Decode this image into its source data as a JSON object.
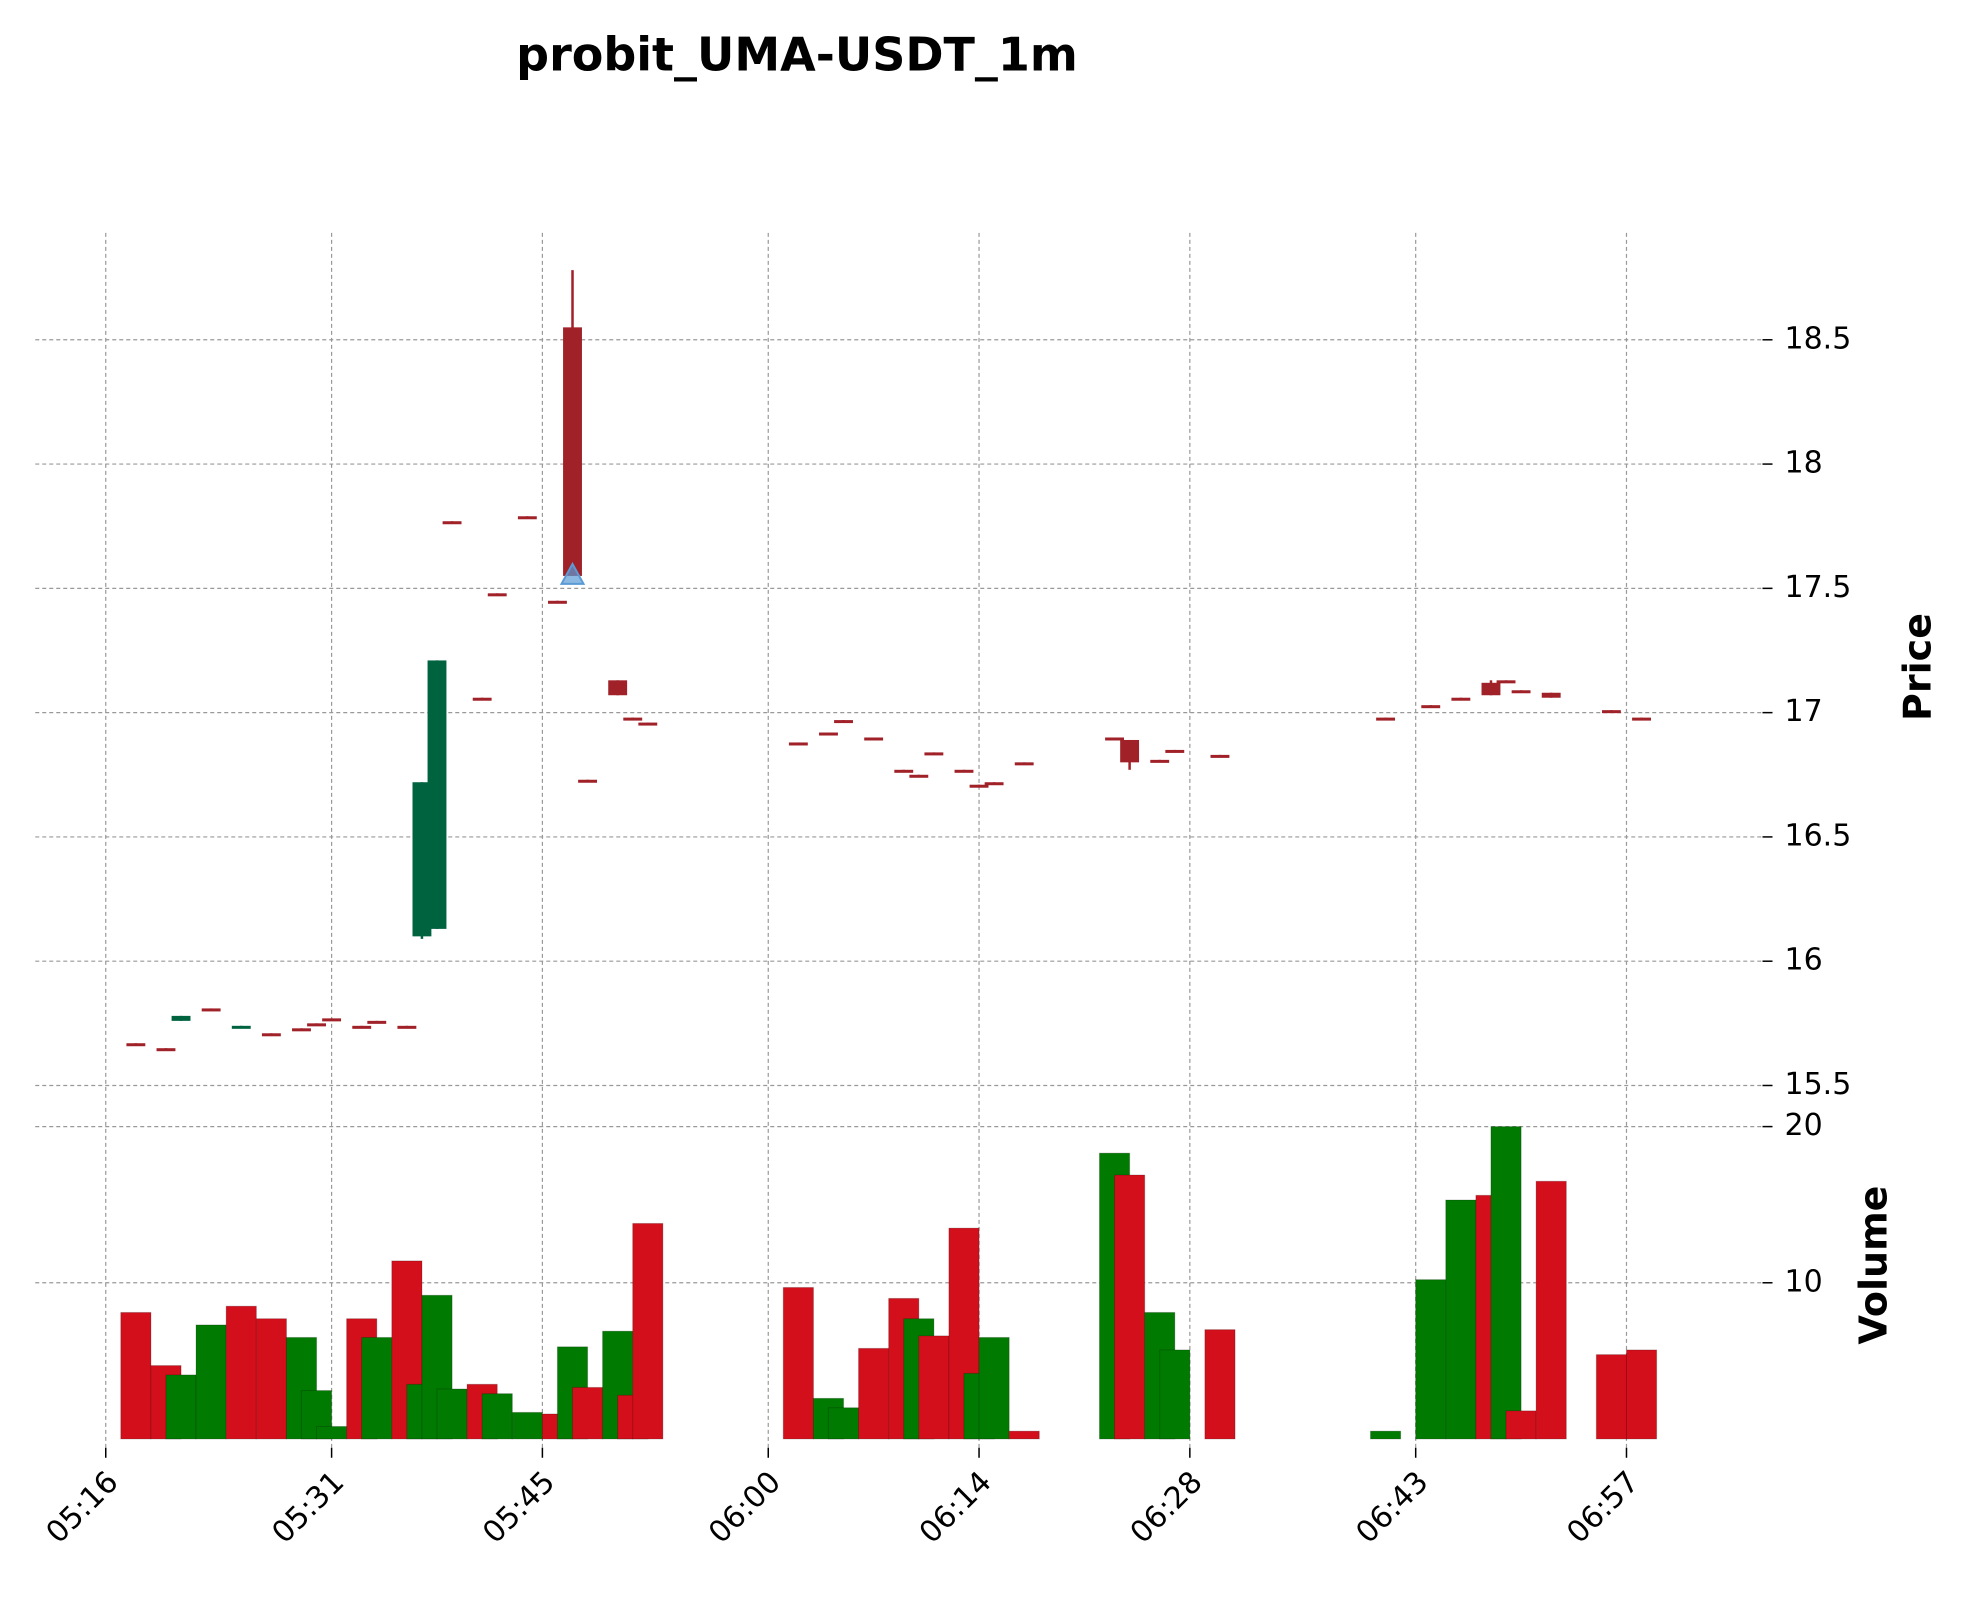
{
  "chart_data": {
    "type": "candlestick",
    "title": "probit_UMA-USDT_1m",
    "ylabel": "Price",
    "volume_label": "Volume",
    "x": [
      "05:18",
      "05:20",
      "05:21",
      "05:23",
      "05:25",
      "05:27",
      "05:29",
      "05:30",
      "05:31",
      "05:33",
      "05:34",
      "05:36",
      "05:37",
      "05:38",
      "05:39",
      "05:41",
      "05:42",
      "05:44",
      "05:46",
      "05:47",
      "05:48",
      "05:50",
      "05:51",
      "05:52",
      "06:02",
      "06:04",
      "06:05",
      "06:07",
      "06:09",
      "06:10",
      "06:11",
      "06:13",
      "06:14",
      "06:15",
      "06:17",
      "06:23",
      "06:24",
      "06:26",
      "06:27",
      "06:30",
      "06:41",
      "06:44",
      "06:46",
      "06:48",
      "06:49",
      "06:50",
      "06:52",
      "06:56",
      "06:58"
    ],
    "open": [
      15.67,
      15.65,
      15.76,
      15.81,
      15.73,
      15.71,
      15.73,
      15.75,
      15.77,
      15.74,
      15.76,
      15.74,
      16.1,
      16.13,
      17.77,
      17.06,
      17.48,
      17.79,
      17.45,
      18.55,
      16.73,
      17.13,
      16.98,
      16.96,
      16.88,
      16.92,
      16.97,
      16.9,
      16.77,
      16.75,
      16.84,
      16.77,
      16.71,
      16.72,
      16.8,
      16.9,
      16.89,
      16.81,
      16.85,
      16.83,
      16.98,
      17.03,
      17.06,
      17.12,
      17.13,
      17.09,
      17.08,
      17.01,
      16.98
    ],
    "high": [
      15.67,
      15.65,
      15.78,
      15.81,
      15.74,
      15.71,
      15.73,
      15.75,
      15.77,
      15.74,
      15.76,
      15.74,
      16.72,
      17.21,
      17.77,
      17.06,
      17.48,
      17.79,
      17.45,
      18.78,
      16.73,
      17.13,
      16.98,
      16.96,
      16.88,
      16.92,
      16.97,
      16.9,
      16.77,
      16.75,
      16.84,
      16.77,
      16.71,
      16.72,
      16.8,
      16.9,
      16.89,
      16.81,
      16.85,
      16.83,
      16.98,
      17.03,
      17.06,
      17.13,
      17.13,
      17.09,
      17.08,
      17.01,
      16.98
    ],
    "low": [
      15.66,
      15.64,
      15.76,
      15.8,
      15.73,
      15.7,
      15.72,
      15.74,
      15.76,
      15.73,
      15.75,
      15.73,
      16.09,
      16.13,
      17.76,
      17.05,
      17.47,
      17.78,
      17.44,
      17.55,
      16.72,
      17.07,
      16.97,
      16.95,
      16.87,
      16.91,
      16.96,
      16.89,
      16.76,
      16.74,
      16.83,
      16.76,
      16.7,
      16.71,
      16.79,
      16.89,
      16.77,
      16.8,
      16.84,
      16.82,
      16.97,
      17.02,
      17.05,
      17.07,
      17.12,
      17.08,
      17.06,
      17.0,
      16.97
    ],
    "close": [
      15.66,
      15.64,
      15.78,
      15.8,
      15.74,
      15.7,
      15.72,
      15.74,
      15.76,
      15.73,
      15.75,
      15.73,
      16.72,
      17.21,
      17.76,
      17.05,
      17.47,
      17.78,
      17.44,
      17.55,
      16.72,
      17.07,
      16.97,
      16.95,
      16.87,
      16.91,
      16.96,
      16.89,
      16.76,
      16.74,
      16.83,
      16.76,
      16.7,
      16.71,
      16.79,
      16.89,
      16.8,
      16.8,
      16.84,
      16.82,
      16.97,
      17.02,
      17.05,
      17.07,
      17.12,
      17.08,
      17.06,
      17.0,
      16.97
    ],
    "volume": [
      8.1,
      4.7,
      4.1,
      7.3,
      8.5,
      7.7,
      6.5,
      3.1,
      0.8,
      7.7,
      6.5,
      11.4,
      3.5,
      9.2,
      3.2,
      3.5,
      2.9,
      1.7,
      1.6,
      5.9,
      3.3,
      6.9,
      2.8,
      13.8,
      9.7,
      2.6,
      2.0,
      5.8,
      9.0,
      7.7,
      6.6,
      13.5,
      4.2,
      6.5,
      0.5,
      18.3,
      16.9,
      8.1,
      5.7,
      7.0,
      0.5,
      10.2,
      15.3,
      15.6,
      20.0,
      1.8,
      16.5,
      5.4,
      5.7
    ],
    "volume_colors": [
      "#d40f1c",
      "#d40f1c",
      "#007a00",
      "#007a00",
      "#d40f1c",
      "#d40f1c",
      "#007a00",
      "#007a00",
      "#007a00",
      "#d40f1c",
      "#007a00",
      "#d40f1c",
      "#007a00",
      "#007a00",
      "#007a00",
      "#d40f1c",
      "#007a00",
      "#007a00",
      "#d40f1c",
      "#007a00",
      "#d40f1c",
      "#007a00",
      "#d40f1c",
      "#d40f1c",
      "#d40f1c",
      "#007a00",
      "#007a00",
      "#d40f1c",
      "#d40f1c",
      "#007a00",
      "#d40f1c",
      "#d40f1c",
      "#007a00",
      "#007a00",
      "#d40f1c",
      "#007a00",
      "#d40f1c",
      "#007a00",
      "#007a00",
      "#d40f1c",
      "#007a00",
      "#007a00",
      "#007a00",
      "#d40f1c",
      "#007a00",
      "#d40f1c",
      "#d40f1c",
      "#d40f1c",
      "#d40f1c"
    ],
    "up_color": "#006340",
    "down_color": "#a02128",
    "markers": {
      "x": [
        "05:47"
      ],
      "values": [
        17.55
      ],
      "color": "#5b9bd5"
    },
    "ylim": [
      15.41,
      18.93
    ],
    "yticks": [
      15.5,
      16.0,
      16.5,
      17.0,
      17.5,
      18.0,
      18.5
    ],
    "volume_ylim": [
      0,
      21.2
    ],
    "volume_yticks": [
      10,
      20
    ],
    "xticks": [
      "05:16",
      "05:31",
      "05:45",
      "06:00",
      "06:14",
      "06:28",
      "06:43",
      "06:57"
    ],
    "grid": true
  }
}
